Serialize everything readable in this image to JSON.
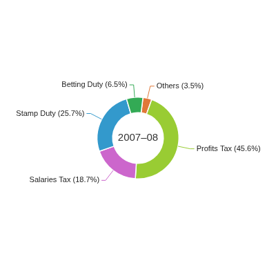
{
  "chart_data": {
    "type": "doughnut",
    "categories": [
      "Others (3.5%)",
      "Profits Tax (45.6%)",
      "Salaries Tax (18.7%)",
      "Stamp Duty (25.7%)",
      "Betting Duty (6.5%)"
    ],
    "values": [
      3.5,
      45.6,
      18.7,
      25.7,
      6.5
    ],
    "colors": [
      "#e07838",
      "#99cc33",
      "#cc66cc",
      "#3399cc",
      "#33aa55"
    ],
    "annotations": [
      "2007–08"
    ]
  }
}
